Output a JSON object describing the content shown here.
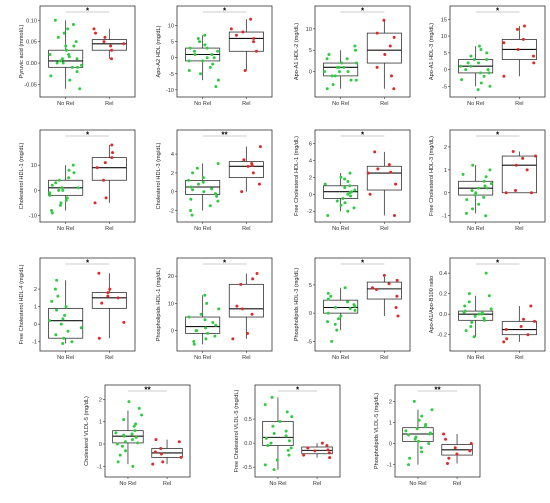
{
  "colors": {
    "no_rel": "#2ecc40",
    "rel": "#e02a2a"
  },
  "chart_data": [
    {
      "type": "box",
      "title": "",
      "ylabel": "Pyruvic acid (mmol/L)",
      "categories": [
        "No Rel",
        "Rel"
      ],
      "yticks": [
        "0.10",
        "0.05",
        "0.00",
        "-0.05"
      ],
      "ylim": [
        -0.07,
        0.11
      ],
      "significance": "*",
      "boxes": [
        {
          "q1": -0.01,
          "median": 0.005,
          "q3": 0.03,
          "low": -0.06,
          "high": 0.1
        },
        {
          "q1": 0.03,
          "median": 0.045,
          "q3": 0.055,
          "low": 0.01,
          "high": 0.08
        }
      ],
      "series": [
        {
          "name": "No Rel",
          "values": [
            0.1,
            0.09,
            0.08,
            0.07,
            0.06,
            0.05,
            0.04,
            0.04,
            0.03,
            0.03,
            0.02,
            0.02,
            0.015,
            0.01,
            0.01,
            0.005,
            0.0,
            0.0,
            -0.005,
            -0.01,
            -0.01,
            -0.02,
            -0.03,
            -0.04,
            -0.06
          ]
        },
        {
          "name": "Rel",
          "values": [
            0.08,
            0.07,
            0.06,
            0.05,
            0.045,
            0.04,
            0.03,
            0.01
          ]
        }
      ]
    },
    {
      "type": "box",
      "title": "",
      "ylabel": "Apo-A2 HDL (mg/dL)",
      "categories": [
        "No Rel",
        "Rel"
      ],
      "yticks": [
        "10",
        "5",
        "0",
        "-5",
        "-10"
      ],
      "ylim": [
        -11,
        13
      ],
      "significance": "*",
      "boxes": [
        {
          "q1": -1,
          "median": 1,
          "q3": 3,
          "low": -7,
          "high": 7
        },
        {
          "q1": 2,
          "median": 6,
          "q3": 8,
          "low": -4,
          "high": 12
        }
      ],
      "series": [
        {
          "name": "No Rel",
          "values": [
            7,
            6,
            5,
            4,
            3,
            3,
            2,
            2,
            1,
            1,
            0,
            0,
            -1,
            -1,
            -2,
            -3,
            -4,
            -5,
            -7,
            -9
          ]
        },
        {
          "name": "Rel",
          "values": [
            12,
            9,
            8,
            7,
            6,
            5,
            2,
            -4
          ]
        }
      ]
    },
    {
      "type": "box",
      "title": "",
      "ylabel": "Apo-A1 HDL-2 (mg/dL)",
      "categories": [
        "No Rel",
        "Rel"
      ],
      "yticks": [
        "10",
        "5",
        "0"
      ],
      "ylim": [
        -5,
        13
      ],
      "significance": "*",
      "boxes": [
        {
          "q1": -1,
          "median": 1,
          "q3": 2,
          "low": -4,
          "high": 5
        },
        {
          "q1": 2,
          "median": 5,
          "q3": 9,
          "low": -4,
          "high": 12
        }
      ],
      "series": [
        {
          "name": "No Rel",
          "values": [
            6,
            5,
            4,
            3,
            3,
            2,
            2,
            1,
            1,
            1,
            0,
            0,
            0,
            -1,
            -1,
            -2,
            -2,
            -3,
            -4
          ]
        },
        {
          "name": "Rel",
          "values": [
            12,
            9,
            8,
            6,
            4,
            1,
            -1,
            -4
          ]
        }
      ]
    },
    {
      "type": "box",
      "title": "",
      "ylabel": "Apo-A1 HDL-3 (mg/dL)",
      "categories": [
        "No Rel",
        "Rel"
      ],
      "yticks": [
        "15",
        "10",
        "5",
        "0",
        "-5"
      ],
      "ylim": [
        -7,
        16
      ],
      "significance": "*",
      "boxes": [
        {
          "q1": -1,
          "median": 1,
          "q3": 3,
          "low": -5,
          "high": 7
        },
        {
          "q1": 3,
          "median": 6,
          "q3": 9,
          "low": -2,
          "high": 13
        }
      ],
      "series": [
        {
          "name": "No Rel",
          "values": [
            7,
            6,
            5,
            4,
            3,
            3,
            2,
            2,
            1,
            1,
            0,
            0,
            -1,
            -1,
            -2,
            -3,
            -4,
            -5,
            -6
          ]
        },
        {
          "name": "Rel",
          "values": [
            13,
            12,
            9,
            8,
            6,
            4,
            2,
            -2
          ]
        }
      ]
    },
    {
      "type": "box",
      "title": "",
      "ylabel": "Cholesterol HDL-1 (mg/dL)",
      "categories": [
        "No Rel",
        "Rel"
      ],
      "yticks": [
        "10",
        "0",
        "-10"
      ],
      "ylim": [
        -11,
        20
      ],
      "significance": "*",
      "boxes": [
        {
          "q1": -2,
          "median": 1,
          "q3": 4,
          "low": -8,
          "high": 10
        },
        {
          "q1": 4,
          "median": 9,
          "q3": 13,
          "low": -5,
          "high": 18
        }
      ],
      "series": [
        {
          "name": "No Rel",
          "values": [
            10,
            8,
            7,
            5,
            4,
            3,
            2,
            1,
            1,
            0,
            0,
            -1,
            -2,
            -3,
            -4,
            -5,
            -6,
            -8,
            -9
          ]
        },
        {
          "name": "Rel",
          "values": [
            18,
            15,
            13,
            11,
            9,
            4,
            -3,
            -5
          ]
        }
      ]
    },
    {
      "type": "box",
      "title": "",
      "ylabel": "Cholesterol HDL-3 (mg/dL)",
      "categories": [
        "No Rel",
        "Rel"
      ],
      "yticks": [
        "4",
        "2",
        "0",
        "-2"
      ],
      "ylim": [
        -2.8,
        5.5
      ],
      "significance": "**",
      "boxes": [
        {
          "q1": -0.3,
          "median": 0.5,
          "q3": 1.2,
          "low": -2,
          "high": 3
        },
        {
          "q1": 1.5,
          "median": 2.7,
          "q3": 3.2,
          "low": 0,
          "high": 4.8
        }
      ],
      "series": [
        {
          "name": "No Rel",
          "values": [
            3,
            2.5,
            2,
            1.5,
            1.2,
            1,
            0.8,
            0.5,
            0.3,
            0.2,
            0,
            -0.2,
            -0.5,
            -0.8,
            -1,
            -1.5,
            -2,
            -2.5
          ]
        },
        {
          "name": "Rel",
          "values": [
            4.8,
            3.4,
            3,
            2.8,
            2.7,
            2,
            0.8,
            0
          ]
        }
      ]
    },
    {
      "type": "box",
      "title": "",
      "ylabel": "Free Cholesterol HDL-1 (mg/dL)",
      "categories": [
        "No Rel",
        "Rel"
      ],
      "yticks": [
        "6",
        "4",
        "2",
        "0",
        "-2"
      ],
      "ylim": [
        -2.8,
        6.4
      ],
      "significance": "*",
      "boxes": [
        {
          "q1": -0.5,
          "median": 0.3,
          "q3": 1,
          "low": -2,
          "high": 2.5
        },
        {
          "q1": 0.5,
          "median": 2.5,
          "q3": 3.3,
          "low": -2.5,
          "high": 5
        }
      ],
      "series": [
        {
          "name": "No Rel",
          "values": [
            2.5,
            2,
            1.8,
            1.5,
            1.2,
            1,
            0.8,
            0.5,
            0.3,
            0.2,
            0,
            -0.2,
            -0.5,
            -0.8,
            -1,
            -1.3,
            -1.6,
            -2,
            -2.5
          ]
        },
        {
          "name": "Rel",
          "values": [
            5,
            3.5,
            3,
            2.6,
            2.5,
            1.2,
            0,
            -2.5
          ]
        }
      ]
    },
    {
      "type": "box",
      "title": "",
      "ylabel": "Free Cholesterol HDL-3 (mg/dL)",
      "categories": [
        "No Rel",
        "Rel"
      ],
      "yticks": [
        "2",
        "1",
        "0",
        "-1"
      ],
      "ylim": [
        -1.1,
        2.3
      ],
      "significance": "*",
      "boxes": [
        {
          "q1": -0.1,
          "median": 0.2,
          "q3": 0.5,
          "low": -0.9,
          "high": 1.2
        },
        {
          "q1": 0.0,
          "median": 1.2,
          "q3": 1.6,
          "low": 0,
          "high": 1.8
        }
      ],
      "series": [
        {
          "name": "No Rel",
          "values": [
            1.2,
            1,
            0.8,
            0.7,
            0.5,
            0.4,
            0.3,
            0.2,
            0.2,
            0.1,
            0,
            -0.1,
            -0.2,
            -0.3,
            -0.5,
            -0.7,
            -0.9,
            -1
          ]
        },
        {
          "name": "Rel",
          "values": [
            1.8,
            1.6,
            1.5,
            1.2,
            1.0,
            0.1,
            0.0,
            0.0
          ]
        }
      ]
    },
    {
      "type": "box",
      "title": "",
      "ylabel": "Free Cholesterol HDL-4 (mg/dL)",
      "categories": [
        "No Rel",
        "Rel"
      ],
      "yticks": [
        "2",
        "1",
        "0",
        "-1"
      ],
      "ylim": [
        -1.3,
        3.2
      ],
      "significance": "*",
      "boxes": [
        {
          "q1": -0.8,
          "median": 0.2,
          "q3": 0.9,
          "low": -1.1,
          "high": 2.5
        },
        {
          "q1": 0.9,
          "median": 1.5,
          "q3": 1.8,
          "low": -0.8,
          "high": 2.9
        }
      ],
      "series": [
        {
          "name": "No Rel",
          "values": [
            2.5,
            2,
            1.6,
            1.3,
            1,
            0.8,
            0.5,
            0.3,
            0.2,
            0,
            -0.2,
            -0.4,
            -0.6,
            -0.8,
            -1,
            -1.1
          ]
        },
        {
          "name": "Rel",
          "values": [
            2.9,
            2.0,
            1.8,
            1.6,
            1.5,
            1.2,
            0.1,
            -0.8
          ]
        }
      ]
    },
    {
      "type": "box",
      "title": "",
      "ylabel": "Phospholipids HDL-1 (mg/dL)",
      "categories": [
        "No Rel",
        "Rel"
      ],
      "yticks": [
        "20",
        "10",
        "0"
      ],
      "ylim": [
        -6,
        23
      ],
      "significance": "*",
      "boxes": [
        {
          "q1": -1,
          "median": 1.5,
          "q3": 5,
          "low": -5,
          "high": 13
        },
        {
          "q1": 5,
          "median": 8,
          "q3": 17,
          "low": -3,
          "high": 21
        }
      ],
      "series": [
        {
          "name": "No Rel",
          "values": [
            13,
            10,
            8,
            6,
            5,
            4,
            3,
            2,
            1,
            0,
            0,
            -1,
            -2,
            -3,
            -4,
            -5
          ]
        },
        {
          "name": "Rel",
          "values": [
            21,
            19,
            17,
            9,
            8,
            6,
            -1,
            -3
          ]
        }
      ]
    },
    {
      "type": "box",
      "title": "",
      "ylabel": "Phospholipids HDL-3 (mg/dL)",
      "categories": [
        "No Rel",
        "Rel"
      ],
      "yticks": [
        "5",
        "0",
        "-5"
      ],
      "ylim": [
        -6,
        8
      ],
      "significance": "*",
      "boxes": [
        {
          "q1": 0,
          "median": 1,
          "q3": 2.3,
          "low": -3,
          "high": 4.5
        },
        {
          "q1": 2.5,
          "median": 4.3,
          "q3": 5.5,
          "low": -0.5,
          "high": 6.7
        }
      ],
      "series": [
        {
          "name": "No Rel",
          "values": [
            4.5,
            3.5,
            3,
            2.5,
            2,
            1.5,
            1.2,
            1,
            0.8,
            0.5,
            0,
            -0.5,
            -1,
            -1.5,
            -2,
            -3,
            -5
          ]
        },
        {
          "name": "Rel",
          "values": [
            6.7,
            5.8,
            5.2,
            4.5,
            4.2,
            3,
            1,
            -0.5
          ]
        }
      ]
    },
    {
      "type": "box",
      "title": "",
      "ylabel": "Apo-A1/Apo-B100 ratio",
      "categories": [
        "No Rel",
        "Rel"
      ],
      "yticks": [
        "0.4",
        "0.2",
        "0.0",
        "-0.2"
      ],
      "ylim": [
        -0.32,
        0.45
      ],
      "significance": "*",
      "boxes": [
        {
          "q1": -0.06,
          "median": 0.0,
          "q3": 0.03,
          "low": -0.22,
          "high": 0.18
        },
        {
          "q1": -0.2,
          "median": -0.15,
          "q3": -0.07,
          "low": -0.27,
          "high": 0.08
        }
      ],
      "series": [
        {
          "name": "No Rel",
          "values": [
            0.4,
            0.2,
            0.18,
            0.12,
            0.08,
            0.05,
            0.03,
            0.02,
            0.01,
            0.0,
            0.0,
            -0.02,
            -0.04,
            -0.06,
            -0.08,
            -0.12,
            -0.16,
            -0.22
          ]
        },
        {
          "name": "Rel",
          "values": [
            0.08,
            -0.05,
            -0.07,
            -0.12,
            -0.15,
            -0.2,
            -0.24,
            -0.27
          ]
        }
      ]
    },
    {
      "type": "box",
      "title": "",
      "ylabel": "Cholesterol VLDL-5 (mg/dL)",
      "categories": [
        "No Rel",
        "Rel"
      ],
      "yticks": [
        "2",
        "1",
        "0",
        "-1"
      ],
      "ylim": [
        -1.3,
        2.2
      ],
      "significance": "**",
      "boxes": [
        {
          "q1": 0.05,
          "median": 0.35,
          "q3": 0.6,
          "low": -0.9,
          "high": 1.5
        },
        {
          "q1": -0.6,
          "median": -0.4,
          "q3": -0.2,
          "low": -0.9,
          "high": 0.2
        }
      ],
      "series": [
        {
          "name": "No Rel",
          "values": [
            1.9,
            1.6,
            1.3,
            1.1,
            0.9,
            0.8,
            0.6,
            0.5,
            0.45,
            0.4,
            0.35,
            0.3,
            0.2,
            0.1,
            0.05,
            0.0,
            -0.1,
            -0.3,
            -0.5,
            -0.8,
            -1.0
          ]
        },
        {
          "name": "Rel",
          "values": [
            0.2,
            0.1,
            -0.2,
            -0.35,
            -0.45,
            -0.6,
            -0.8,
            -0.9
          ]
        }
      ]
    },
    {
      "type": "box",
      "title": "",
      "ylabel": "Free Cholesterol VLDL-5 (mg/dL)",
      "categories": [
        "No Rel",
        "Rel"
      ],
      "yticks": [
        "0.5",
        "0.0",
        "-0.5"
      ],
      "ylim": [
        -0.62,
        1.0
      ],
      "significance": "*",
      "boxes": [
        {
          "q1": -0.05,
          "median": 0.12,
          "q3": 0.45,
          "low": -0.55,
          "high": 0.95
        },
        {
          "q1": -0.22,
          "median": -0.15,
          "q3": -0.08,
          "low": -0.3,
          "high": 0.0
        }
      ],
      "series": [
        {
          "name": "No Rel",
          "values": [
            0.95,
            0.8,
            0.65,
            0.55,
            0.45,
            0.35,
            0.25,
            0.2,
            0.15,
            0.1,
            0.05,
            0.0,
            -0.05,
            -0.1,
            -0.15,
            -0.25,
            -0.35,
            -0.45,
            -0.55
          ]
        },
        {
          "name": "Rel",
          "values": [
            0.0,
            -0.05,
            -0.1,
            -0.14,
            -0.16,
            -0.2,
            -0.25,
            -0.3
          ]
        }
      ]
    },
    {
      "type": "box",
      "title": "",
      "ylabel": "Phospholipids VLDL-5 (mg/dL)",
      "categories": [
        "No Rel",
        "Rel"
      ],
      "yticks": [
        "2",
        "1",
        "0",
        "-1"
      ],
      "ylim": [
        -1.4,
        2.3
      ],
      "significance": "**",
      "boxes": [
        {
          "q1": 0.1,
          "median": 0.45,
          "q3": 0.75,
          "low": -1.0,
          "high": 1.6
        },
        {
          "q1": -0.55,
          "median": -0.3,
          "q3": -0.05,
          "low": -0.95,
          "high": 0.45
        }
      ],
      "series": [
        {
          "name": "No Rel",
          "values": [
            2.0,
            1.6,
            1.3,
            1.1,
            0.9,
            0.8,
            0.7,
            0.6,
            0.5,
            0.45,
            0.4,
            0.3,
            0.2,
            0.1,
            0.0,
            -0.2,
            -0.4,
            -0.7,
            -1.0
          ]
        },
        {
          "name": "Rel",
          "values": [
            0.45,
            0.2,
            0.0,
            -0.2,
            -0.35,
            -0.5,
            -0.7,
            -0.95
          ]
        }
      ]
    }
  ]
}
